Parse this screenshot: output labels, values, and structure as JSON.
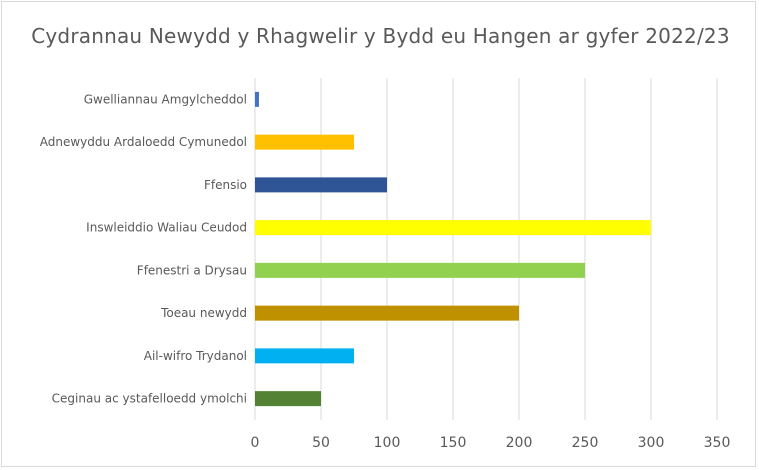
{
  "chart_data": {
    "type": "bar",
    "orientation": "horizontal",
    "title": "Cydrannau Newydd y Rhagwelir y Bydd eu Hangen ar gyfer 2022/23",
    "xlabel": "",
    "ylabel": "",
    "xlim": [
      0,
      350
    ],
    "xticks": [
      "0",
      "50",
      "100",
      "150",
      "200",
      "250",
      "300",
      "350"
    ],
    "grid": "vertical",
    "legend": "none",
    "categories": [
      "Gwelliannau Amgylcheddol",
      "Adnewyddu Ardaloedd Cymunedol",
      "Ffensio",
      "Inswleiddio Waliau Ceudod",
      "Ffenestri a Drysau",
      "Toeau newydd",
      "Ail-wifro Trydanol",
      "Ceginau ac ystafelloedd ymolchi"
    ],
    "values": [
      3,
      75,
      100,
      300,
      250,
      200,
      75,
      50
    ],
    "colors": [
      "#4472c4",
      "#ffc000",
      "#2f5597",
      "#ffff00",
      "#92d050",
      "#bf9000",
      "#00b0f0",
      "#548235"
    ]
  }
}
